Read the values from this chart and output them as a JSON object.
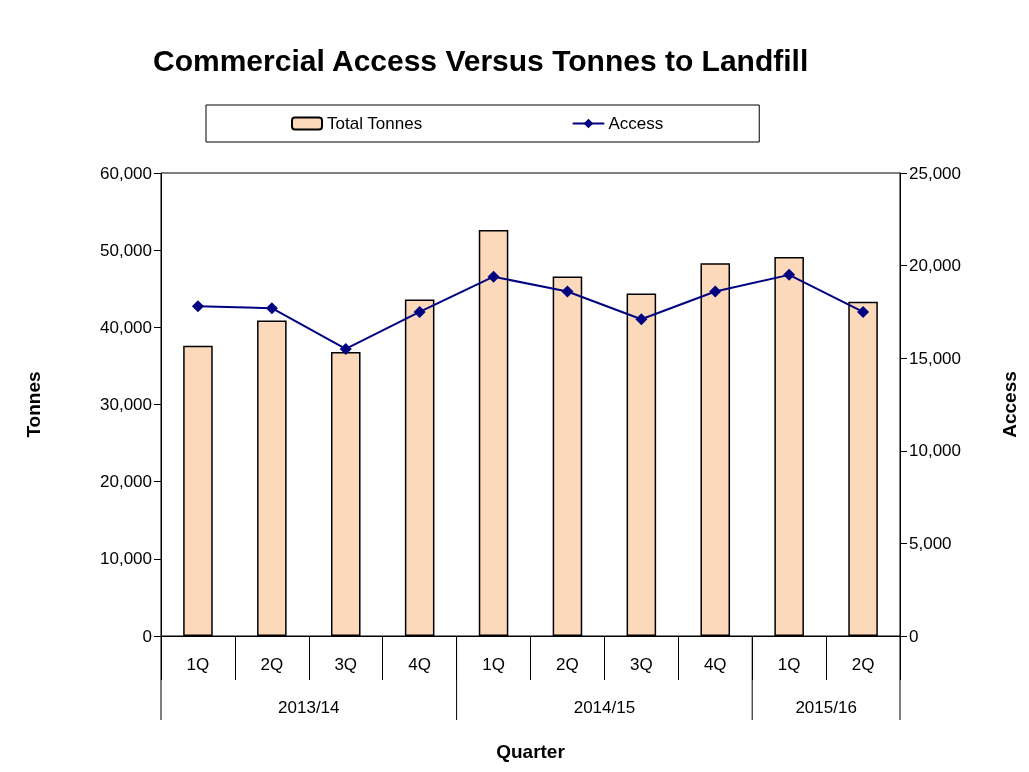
{
  "chart_data": {
    "type": "bar",
    "title": "Commercial Access Versus Tonnes to Landfill",
    "xlabel": "Quarter",
    "ylabel": "Tonnes",
    "y2label": "Access",
    "categories": [
      "1Q",
      "2Q",
      "3Q",
      "4Q",
      "1Q",
      "2Q",
      "3Q",
      "4Q",
      "1Q",
      "2Q"
    ],
    "series": [
      {
        "name": "Total Tonnes",
        "color": "#fcd9bb",
        "values": [
          37600,
          40900,
          36800,
          43600,
          52600,
          46600,
          44400,
          48300,
          49100,
          43300
        ]
      },
      {
        "name": "Access",
        "type": "line",
        "axis": "y2",
        "color": "#000080",
        "values": [
          17800,
          17700,
          15500,
          17500,
          19400,
          18600,
          17100,
          18600,
          19500,
          17500
        ]
      }
    ],
    "ylim": [
      0,
      60000
    ],
    "yticks": [
      0,
      {
        "value": 10000,
        "label": "10,000"
      },
      {
        "value": 20000,
        "label": "20,000"
      },
      {
        "value": 30000,
        "label": "30,000"
      },
      {
        "value": 40000,
        "label": "40,000"
      },
      {
        "value": 50000,
        "label": "50,000"
      },
      {
        "value": 60000,
        "label": "60,000"
      }
    ],
    "y2lim": [
      0,
      25000
    ],
    "y2ticks": [
      0,
      {
        "value": 5000,
        "label": "5,000"
      },
      {
        "value": 10000,
        "label": "10,000"
      },
      {
        "value": 15000,
        "label": "15,000"
      },
      {
        "value": 20000,
        "label": "20,000"
      },
      {
        "value": 25000,
        "label": "25,000"
      }
    ],
    "legend": "top",
    "marker": "diamond",
    "line_style": "solid",
    "annotations": [
      "2013/14",
      "2014/15",
      "2015/16"
    ]
  }
}
